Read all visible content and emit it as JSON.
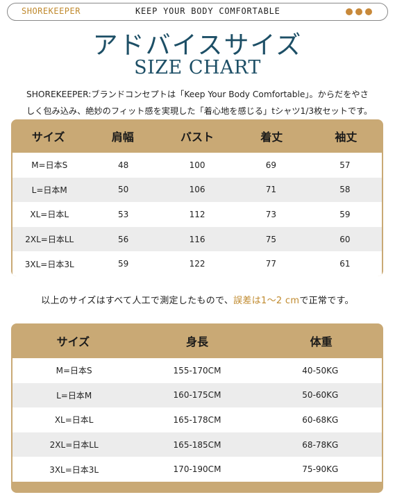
{
  "topbar": {
    "brand": "SHOREKEEPER",
    "tagline": "KEEP YOUR BODY COMFORTABLE",
    "dot_color": "#c8893a"
  },
  "title": {
    "jp": "アドバイスサイズ",
    "en": "SIZE CHART"
  },
  "description": "SHOREKEEPER:ブランドコンセプトは「Keep Your Body Comfortable」。からだをやさしく包み込み、絶妙のフィット感を実現した「着心地を感じる」tシャツ1/3枚セットです。",
  "table1": {
    "headers": [
      "サイズ",
      "肩幅",
      "バスト",
      "着丈",
      "袖丈"
    ],
    "rows": [
      [
        "M=日本S",
        "48",
        "100",
        "69",
        "57"
      ],
      [
        "L=日本M",
        "50",
        "106",
        "71",
        "58"
      ],
      [
        "XL=日本L",
        "53",
        "112",
        "73",
        "59"
      ],
      [
        "2XL=日本LL",
        "56",
        "116",
        "75",
        "60"
      ],
      [
        "3XL=日本3L",
        "59",
        "122",
        "77",
        "61"
      ]
    ]
  },
  "note": {
    "before": "以上のサイズはすべて人工で測定したもので、",
    "highlight": "誤差は1〜2 cm",
    "after": "で正常です。"
  },
  "table2": {
    "headers": [
      "サイズ",
      "身長",
      "体重"
    ],
    "rows": [
      [
        "M=日本S",
        "155-170CM",
        "40-50KG"
      ],
      [
        "L=日本M",
        "160-175CM",
        "50-60KG"
      ],
      [
        "XL=日本L",
        "165-178CM",
        "60-68KG"
      ],
      [
        "2XL=日本LL",
        "165-185CM",
        "68-78KG"
      ],
      [
        "3XL=日本3L",
        "170-190CM",
        "75-90KG"
      ]
    ]
  },
  "colors": {
    "header_bg": "#c9a975",
    "title": "#1d4f66",
    "accent": "#c08a2e",
    "row_alt": "#ececec"
  }
}
